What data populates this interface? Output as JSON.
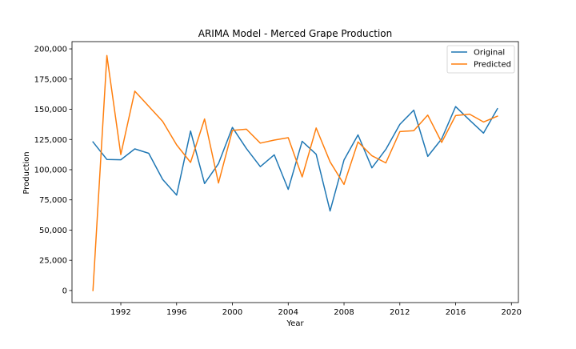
{
  "chart_data": {
    "type": "line",
    "title": "ARIMA Model - Merced Grape Production",
    "xlabel": "Year",
    "ylabel": "Production",
    "xlim": [
      1988.5,
      2020.5
    ],
    "ylim": [
      -10000,
      206000
    ],
    "grid": false,
    "legend_position": "top-right",
    "x_ticks": [
      {
        "value": 1992,
        "label": "1992"
      },
      {
        "value": 1996,
        "label": "1996"
      },
      {
        "value": 2000,
        "label": "2000"
      },
      {
        "value": 2004,
        "label": "2004"
      },
      {
        "value": 2008,
        "label": "2008"
      },
      {
        "value": 2012,
        "label": "2012"
      },
      {
        "value": 2016,
        "label": "2016"
      },
      {
        "value": 2020,
        "label": "2020"
      }
    ],
    "y_ticks": [
      {
        "value": 0,
        "label": "0"
      },
      {
        "value": 25000,
        "label": "25,000"
      },
      {
        "value": 50000,
        "label": "50,000"
      },
      {
        "value": 75000,
        "label": "75,000"
      },
      {
        "value": 100000,
        "label": "100,000"
      },
      {
        "value": 125000,
        "label": "125,000"
      },
      {
        "value": 150000,
        "label": "150,000"
      },
      {
        "value": 175000,
        "label": "175,000"
      },
      {
        "value": 200000,
        "label": "200,000"
      }
    ],
    "x": [
      1990,
      1991,
      1992,
      1993,
      1994,
      1995,
      1996,
      1997,
      1998,
      1999,
      2000,
      2001,
      2002,
      2003,
      2004,
      2005,
      2006,
      2007,
      2008,
      2009,
      2010,
      2011,
      2012,
      2013,
      2014,
      2015,
      2016,
      2017,
      2018,
      2019
    ],
    "series": [
      {
        "name": "Original",
        "color": "#1f77b4",
        "values": [
          123000,
          108500,
          108200,
          117200,
          113600,
          92000,
          79000,
          132000,
          88500,
          105000,
          135000,
          117500,
          102500,
          112300,
          83700,
          123500,
          112800,
          65800,
          108000,
          128800,
          101500,
          116800,
          137500,
          149300,
          111000,
          125500,
          152200,
          141000,
          130300,
          150500
        ]
      },
      {
        "name": "Predicted",
        "color": "#ff7f0e",
        "values": [
          0,
          194500,
          112500,
          165000,
          152500,
          140000,
          120500,
          106000,
          142000,
          89000,
          132500,
          133500,
          122000,
          124500,
          126500,
          94000,
          134500,
          106500,
          87800,
          123000,
          111500,
          105600,
          131500,
          132300,
          145200,
          122600,
          144800,
          146000,
          139500,
          144300
        ]
      }
    ]
  }
}
